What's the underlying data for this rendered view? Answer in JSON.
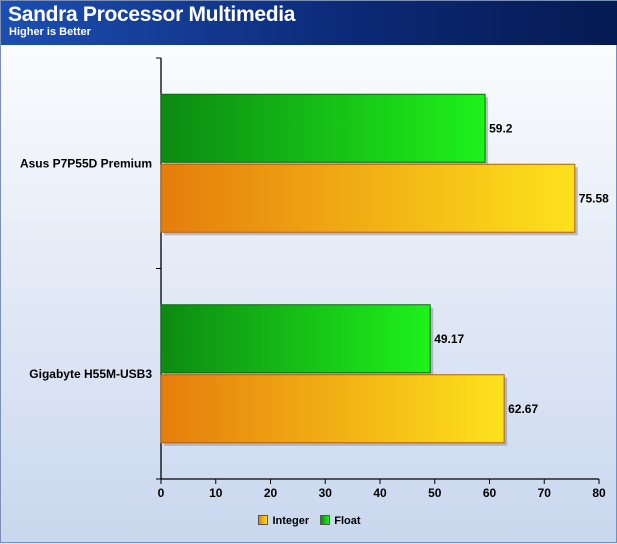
{
  "chart_data": {
    "type": "bar",
    "orientation": "horizontal",
    "title": "Sandra Processor Multimedia",
    "subtitle": "Higher is Better",
    "categories": [
      "Asus P7P55D Premium",
      "Gigabyte H55M-USB3"
    ],
    "series": [
      {
        "name": "Integer",
        "values": [
          75.58,
          62.67
        ],
        "color_start": "#e57d0c",
        "color_end": "#fde21c"
      },
      {
        "name": "Float",
        "values": [
          59.2,
          49.17
        ],
        "color_start": "#0d8a12",
        "color_end": "#1ef21a"
      }
    ],
    "xlim": [
      0,
      80
    ],
    "x_ticks": [
      0,
      10,
      20,
      30,
      40,
      50,
      60,
      70,
      80
    ],
    "grid": false,
    "legend_position": "bottom-center"
  }
}
